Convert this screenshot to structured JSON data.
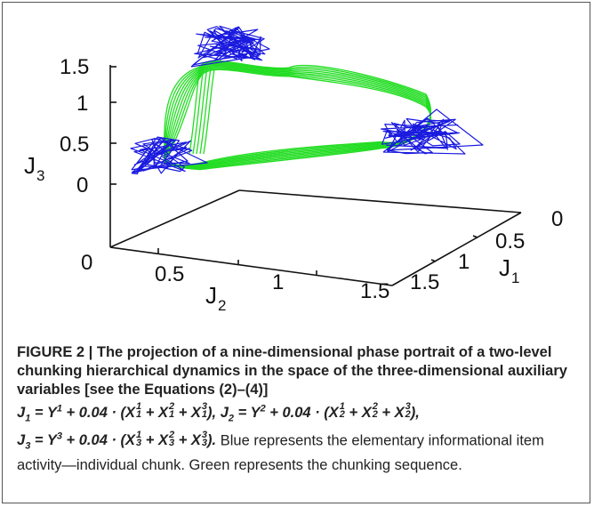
{
  "figure": {
    "z_axis": {
      "label": "J",
      "label_sub": "3",
      "ticks": [
        "1.5",
        "1",
        "0.5",
        "0"
      ]
    },
    "x_axis": {
      "label": "J",
      "label_sub": "2",
      "ticks": [
        "0",
        "0.5",
        "1",
        "1.5"
      ]
    },
    "y_axis": {
      "label": "J",
      "label_sub": "1",
      "ticks": [
        "0",
        "0.5",
        "1",
        "1.5"
      ]
    },
    "colors": {
      "elementary_activity": "#1a1adf",
      "chunking_sequence": "#22dd22",
      "axes": "#111111"
    }
  },
  "caption": {
    "heading": "FIGURE 2 | The projection of a nine-dimensional phase portrait of a two-level chunking hierarchical dynamics in the space of the three-dimensional auxiliary variables [see the Equations (2)–(4)]",
    "text_blue": "Blue represents the elementary informational item activity—individual chunk.",
    "text_green": "Green represents the chunking sequence."
  }
}
